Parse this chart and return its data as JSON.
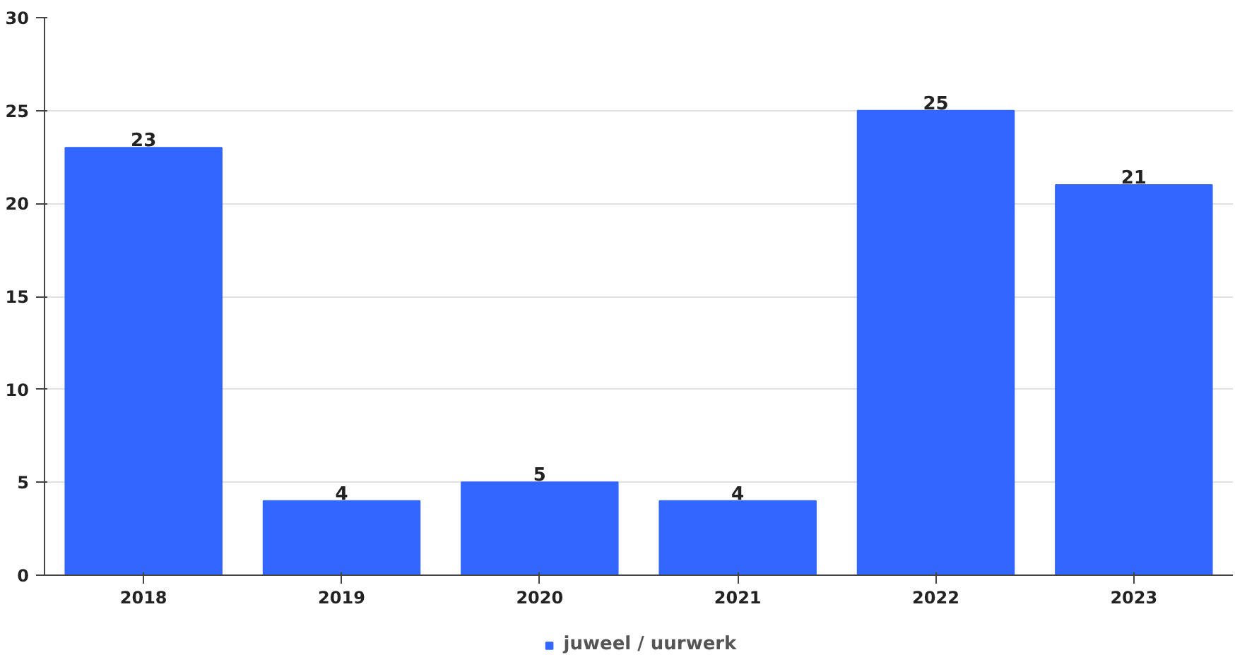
{
  "chart_data": {
    "type": "bar",
    "categories": [
      "2018",
      "2019",
      "2020",
      "2021",
      "2022",
      "2023"
    ],
    "series": [
      {
        "name": "juweel / uurwerk",
        "color": "#3366ff",
        "values": [
          23,
          4,
          5,
          4,
          25,
          21
        ]
      }
    ],
    "ylim": [
      0,
      30
    ],
    "yticks": [
      0,
      5,
      10,
      15,
      20,
      25,
      30
    ],
    "grid": "y",
    "legend": "bottom",
    "data_labels": true
  }
}
